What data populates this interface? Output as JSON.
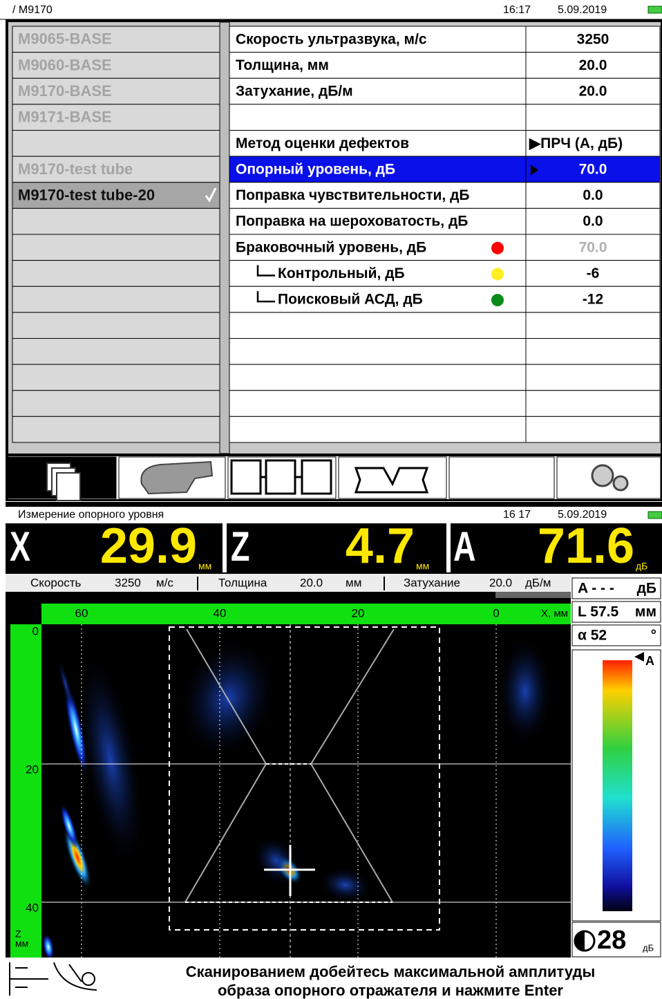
{
  "top": {
    "path": "/ M9170",
    "time": "16:17",
    "date": "5.09.2019",
    "presets": [
      "M9065-BASE",
      "M9060-BASE",
      "M9170-BASE",
      "M9171-BASE",
      null,
      "M9170-test tube",
      "M9170-test tube-20"
    ],
    "params": [
      {
        "label": "Скорость ультразвука, м/с",
        "value": "3250"
      },
      {
        "label": "Толщина, мм",
        "value": "20.0"
      },
      {
        "label": "Затухание, дБ/м",
        "value": "20.0"
      },
      null,
      {
        "label": "Метод оценки дефектов",
        "value": "▶ПРЧ (А, дБ)"
      },
      {
        "label": "Опорный уровень, дБ",
        "value": "70.0"
      },
      {
        "label": "Поправка чувствительности, дБ",
        "value": "0.0"
      },
      {
        "label": "Поправка на шероховатость, дБ",
        "value": "0.0"
      },
      {
        "label": "Браковочный уровень, дБ",
        "value": "70.0",
        "dot": "#ff0000"
      },
      {
        "label": "Контрольный, дБ",
        "value": "-6",
        "dot": "#ffee22"
      },
      {
        "label": "Поисковый АСД, дБ",
        "value": "-12",
        "dot": "#0a8a1a"
      }
    ]
  },
  "bottom": {
    "title": "Измерение опорного уровня",
    "time": "16 17",
    "date": "5.09.2019",
    "readouts": [
      {
        "name": "X",
        "value": "29.9",
        "unit": "мм"
      },
      {
        "name": "Z",
        "value": "4.7",
        "unit": "мм"
      },
      {
        "name": "A",
        "value": "71.6",
        "unit": "дБ"
      }
    ],
    "info": [
      {
        "label": "Скорость",
        "value": "3250",
        "unit": "м/с"
      },
      {
        "label": "Толщина",
        "value": "20.0",
        "unit": "мм"
      },
      {
        "label": "Затухание",
        "value": "20.0",
        "unit": "дБ/м"
      }
    ],
    "side": [
      {
        "label": "A - - -",
        "unit": "дБ"
      },
      {
        "label": "L 57.5",
        "unit": "мм"
      },
      {
        "label": "α  52",
        "unit": "°"
      }
    ],
    "scale_label": "A",
    "gain": "28",
    "gain_unit": "дБ",
    "scan": {
      "x_ticks": [
        60,
        40,
        20,
        0
      ],
      "x_label": "X, мм",
      "z_ticks": [
        0,
        20,
        40
      ],
      "z_label": [
        "Z",
        "мм"
      ]
    },
    "message": [
      "Сканированием добейтесь максимальной амплитуды",
      "образа опорного отражателя и нажмите Enter"
    ]
  }
}
